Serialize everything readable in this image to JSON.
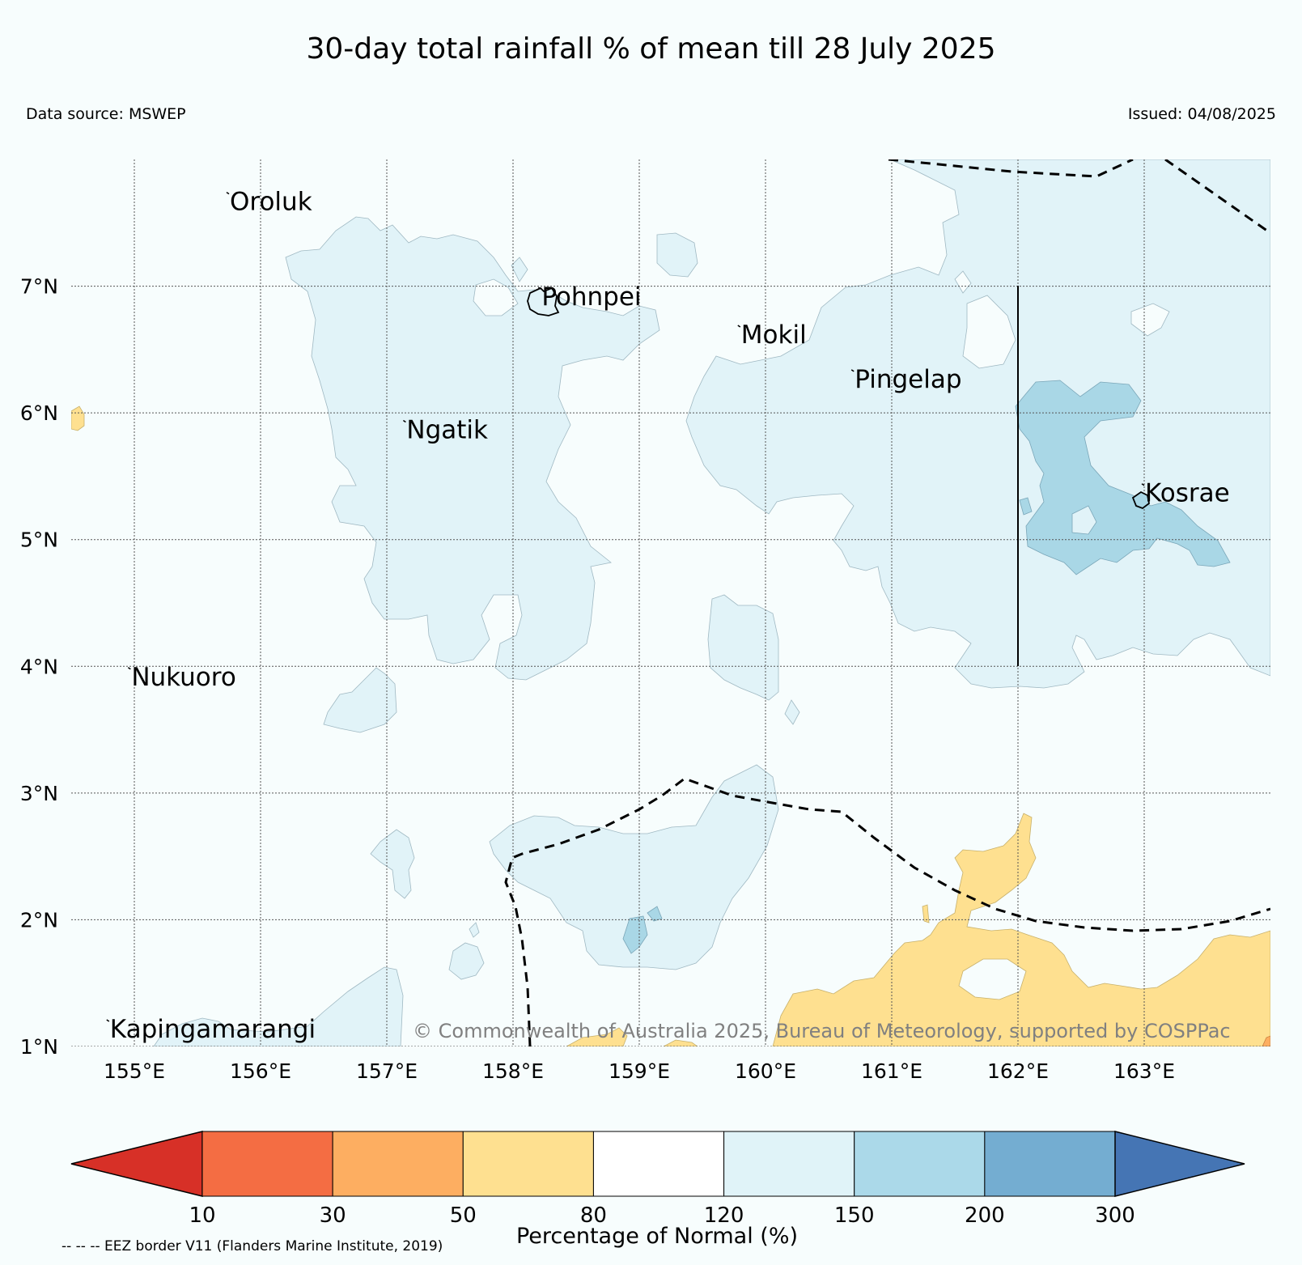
{
  "title": "30-day total rainfall % of mean till 28 July 2025",
  "data_source": "Data source: MSWEP",
  "issued": "Issued: 04/08/2025",
  "copyright": "© Commonwealth of Australia 2025, Bureau of Meteorology, supported by COSPPac",
  "map": {
    "lon_range": [
      154.5,
      164.0
    ],
    "lat_range": [
      1.0,
      8.0
    ],
    "lat_ticks": [
      "1°N",
      "2°N",
      "3°N",
      "4°N",
      "5°N",
      "6°N",
      "7°N"
    ],
    "lon_ticks": [
      "155°E",
      "156°E",
      "157°E",
      "158°E",
      "159°E",
      "160°E",
      "161°E",
      "162°E",
      "163°E"
    ],
    "places": [
      {
        "name": "Oroluk",
        "lon": 155.75,
        "lat": 7.6
      },
      {
        "name": "Pohnpei",
        "lon": 158.22,
        "lat": 6.85
      },
      {
        "name": "Mokil",
        "lon": 159.8,
        "lat": 6.55
      },
      {
        "name": "Pingelap",
        "lon": 160.7,
        "lat": 6.2
      },
      {
        "name": "Ngatik",
        "lon": 157.15,
        "lat": 5.8
      },
      {
        "name": "Kosrae",
        "lon": 163.0,
        "lat": 5.3
      },
      {
        "name": "Nukuoro",
        "lon": 154.97,
        "lat": 3.85
      },
      {
        "name": "Kapingamarangi",
        "lon": 154.8,
        "lat": 1.07
      }
    ],
    "colors": {
      "background": "#f7fdfd",
      "above_120_150": "#e1f3f8",
      "above_150_200": "#a9d7e6",
      "below_50_80": "#fee090",
      "below_30_50": "#fdae61"
    }
  },
  "colorbar": {
    "title": "Percentage of Normal (%)",
    "boundaries": [
      "10",
      "30",
      "50",
      "80",
      "120",
      "150",
      "200",
      "300"
    ],
    "colors": [
      "#d73027",
      "#f46d43",
      "#fdae61",
      "#fee090",
      "#ffffff",
      "#e0f3f8",
      "#abd9e9",
      "#74add1",
      "#4575b4"
    ]
  },
  "eez_note": "-- -- -- EEZ border V11 (Flanders Marine Institute, 2019)"
}
